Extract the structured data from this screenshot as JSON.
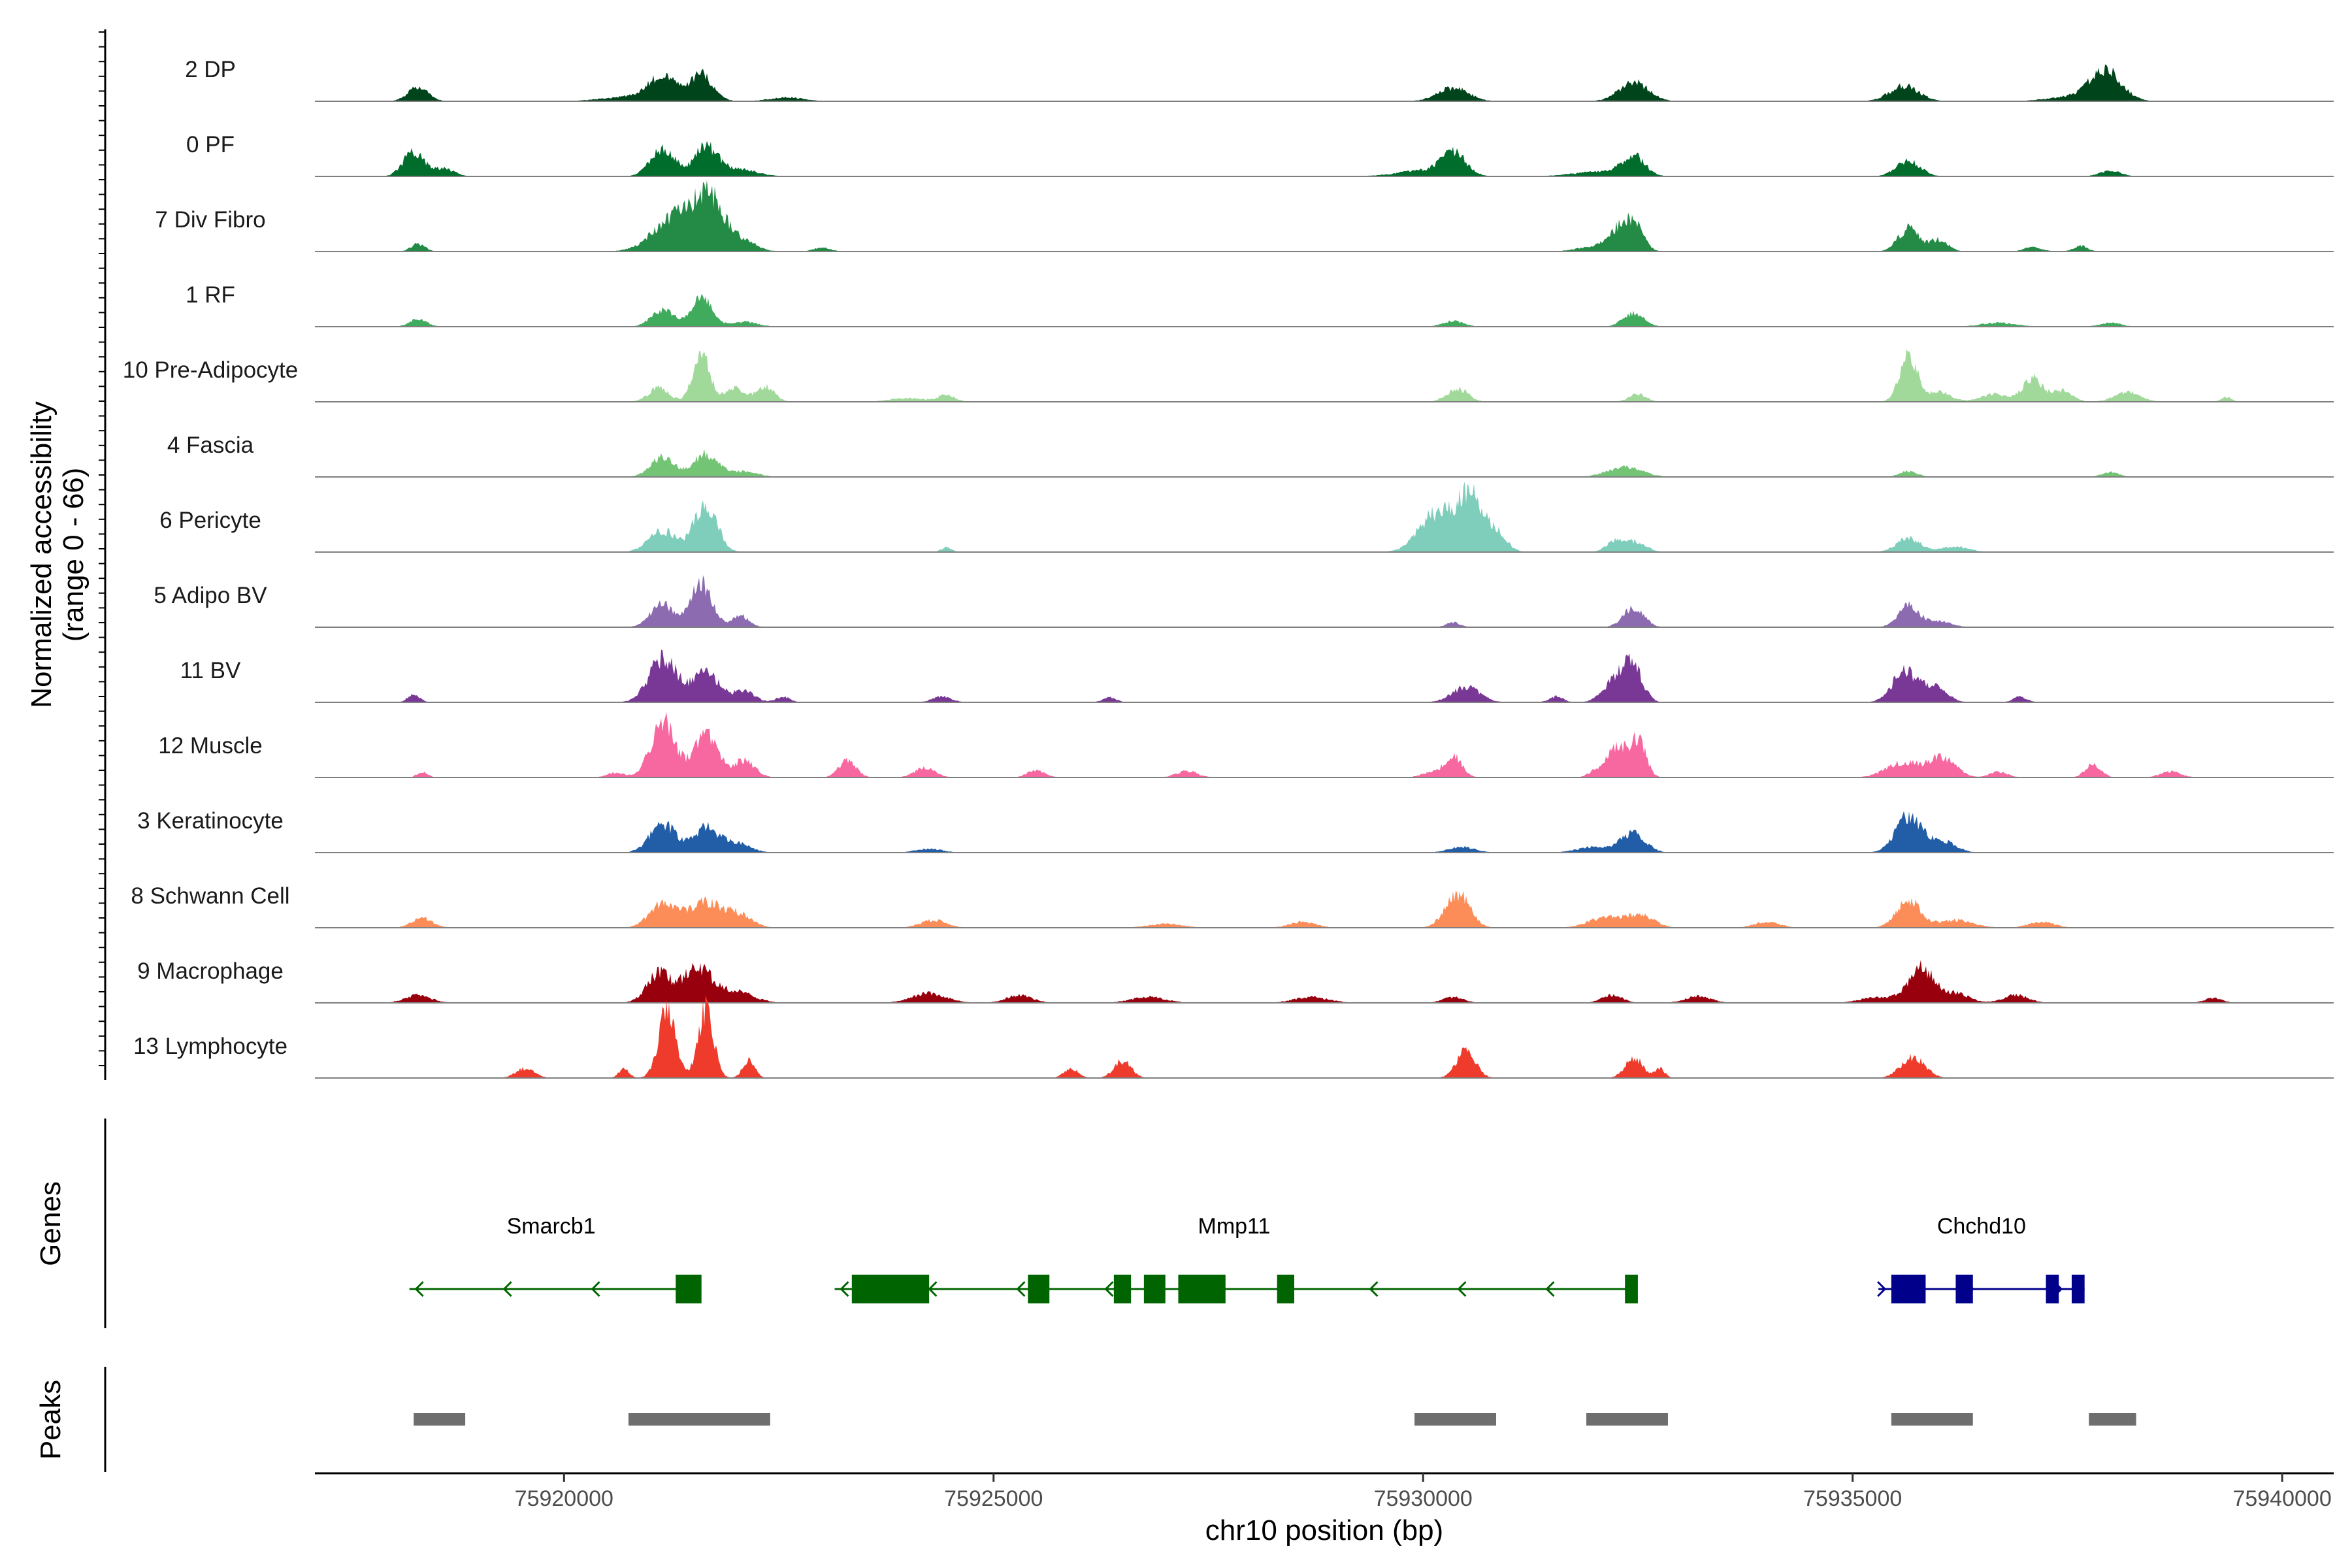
{
  "chart_data": {
    "type": "area",
    "title": "",
    "ylabel": "Normalized accessibility",
    "ylabel_range": "(range 0 - 66)",
    "xlabel": "chr10 position (bp)",
    "chromosome": "chr10",
    "xlim": [
      75917100,
      75940600
    ],
    "ylim": [
      0,
      66
    ],
    "x_ticks": [
      75920000,
      75925000,
      75930000,
      75935000,
      75940000
    ],
    "x_tick_labels": [
      "75920000",
      "75925000",
      "75930000",
      "75935000",
      "75940000"
    ],
    "genes_panel_label": "Genes",
    "peaks_panel_label": "Peaks",
    "tracks": [
      {
        "name": "2 DP",
        "color": "#00441b",
        "peaks": [
          [
            75918300,
            120,
            14
          ],
          [
            75921150,
            150,
            22
          ],
          [
            75921600,
            130,
            26
          ],
          [
            75920950,
            400,
            6
          ],
          [
            75922600,
            200,
            4
          ],
          [
            75930350,
            180,
            14
          ],
          [
            75932450,
            170,
            20
          ],
          [
            75935600,
            170,
            16
          ],
          [
            75937950,
            180,
            30
          ],
          [
            75937600,
            300,
            5
          ]
        ]
      },
      {
        "name": "0 PF",
        "color": "#006d2c",
        "peaks": [
          [
            75918250,
            120,
            26
          ],
          [
            75918600,
            120,
            8
          ],
          [
            75921150,
            140,
            30
          ],
          [
            75921650,
            130,
            30
          ],
          [
            75922000,
            220,
            8
          ],
          [
            75930350,
            140,
            24
          ],
          [
            75930000,
            300,
            6
          ],
          [
            75932450,
            130,
            20
          ],
          [
            75932050,
            300,
            5
          ],
          [
            75935650,
            140,
            16
          ],
          [
            75938000,
            120,
            6
          ]
        ]
      },
      {
        "name": "7 Div Fibro",
        "color": "#238b45",
        "peaks": [
          [
            75918300,
            80,
            8
          ],
          [
            75921300,
            250,
            36
          ],
          [
            75921700,
            180,
            50
          ],
          [
            75922100,
            150,
            10
          ],
          [
            75923000,
            100,
            4
          ],
          [
            75932250,
            120,
            18
          ],
          [
            75932450,
            110,
            28
          ],
          [
            75932000,
            200,
            5
          ],
          [
            75935650,
            120,
            24
          ],
          [
            75936000,
            110,
            12
          ],
          [
            75937100,
            100,
            5
          ],
          [
            75937650,
            80,
            6
          ]
        ]
      },
      {
        "name": "1 RF",
        "color": "#41ab5d",
        "peaks": [
          [
            75918300,
            100,
            8
          ],
          [
            75921150,
            130,
            18
          ],
          [
            75921600,
            120,
            30
          ],
          [
            75922100,
            150,
            5
          ],
          [
            75930350,
            120,
            6
          ],
          [
            75932450,
            120,
            14
          ],
          [
            75936700,
            200,
            4
          ],
          [
            75938000,
            120,
            4
          ]
        ]
      },
      {
        "name": "10 Pre-Adipocyte",
        "color": "#a1d99b",
        "peaks": [
          [
            75921100,
            120,
            14
          ],
          [
            75921600,
            100,
            48
          ],
          [
            75922000,
            120,
            14
          ],
          [
            75922350,
            100,
            16
          ],
          [
            75924450,
            100,
            7
          ],
          [
            75924000,
            200,
            4
          ],
          [
            75930400,
            120,
            14
          ],
          [
            75932500,
            100,
            8
          ],
          [
            75935650,
            100,
            50
          ],
          [
            75936000,
            150,
            10
          ],
          [
            75936650,
            150,
            8
          ],
          [
            75937100,
            120,
            24
          ],
          [
            75937450,
            110,
            12
          ],
          [
            75938200,
            150,
            10
          ],
          [
            75939350,
            60,
            5
          ]
        ]
      },
      {
        "name": "4 Fascia",
        "color": "#74c476",
        "peaks": [
          [
            75921150,
            140,
            20
          ],
          [
            75921650,
            140,
            24
          ],
          [
            75922100,
            150,
            6
          ],
          [
            75932350,
            200,
            10
          ],
          [
            75935650,
            100,
            6
          ],
          [
            75938000,
            100,
            5
          ]
        ]
      },
      {
        "name": "6 Pericyte",
        "color": "#7fcdbb",
        "peaks": [
          [
            75921150,
            160,
            22
          ],
          [
            75921650,
            130,
            52
          ],
          [
            75930150,
            200,
            40
          ],
          [
            75930550,
            150,
            56
          ],
          [
            75930850,
            120,
            18
          ],
          [
            75932250,
            110,
            12
          ],
          [
            75932500,
            110,
            10
          ],
          [
            75935650,
            140,
            14
          ],
          [
            75936200,
            150,
            6
          ],
          [
            75924450,
            60,
            5
          ]
        ]
      },
      {
        "name": "5 Adipo BV",
        "color": "#8c6bb1",
        "peaks": [
          [
            75921150,
            140,
            24
          ],
          [
            75921600,
            120,
            46
          ],
          [
            75922050,
            100,
            12
          ],
          [
            75932450,
            120,
            20
          ],
          [
            75935650,
            120,
            22
          ],
          [
            75936000,
            150,
            6
          ],
          [
            75930350,
            80,
            5
          ]
        ]
      },
      {
        "name": "11 BV",
        "color": "#7a3896",
        "peaks": [
          [
            75918250,
            70,
            8
          ],
          [
            75921150,
            160,
            46
          ],
          [
            75921650,
            160,
            30
          ],
          [
            75922100,
            120,
            12
          ],
          [
            75922550,
            80,
            6
          ],
          [
            75924400,
            110,
            6
          ],
          [
            75926350,
            80,
            5
          ],
          [
            75930500,
            160,
            16
          ],
          [
            75931550,
            80,
            6
          ],
          [
            75932250,
            140,
            24
          ],
          [
            75932450,
            110,
            32
          ],
          [
            75935600,
            140,
            32
          ],
          [
            75935950,
            140,
            16
          ],
          [
            75936950,
            80,
            6
          ]
        ]
      },
      {
        "name": "12 Muscle",
        "color": "#f768a1",
        "peaks": [
          [
            75918350,
            60,
            6
          ],
          [
            75920600,
            100,
            5
          ],
          [
            75921150,
            140,
            58
          ],
          [
            75921650,
            140,
            46
          ],
          [
            75922100,
            120,
            18
          ],
          [
            75923300,
            100,
            18
          ],
          [
            75924200,
            120,
            10
          ],
          [
            75925500,
            100,
            8
          ],
          [
            75927250,
            120,
            7
          ],
          [
            75930350,
            100,
            22
          ],
          [
            75930100,
            120,
            5
          ],
          [
            75932250,
            110,
            32
          ],
          [
            75932500,
            90,
            40
          ],
          [
            75932000,
            80,
            6
          ],
          [
            75935600,
            200,
            16
          ],
          [
            75936050,
            150,
            20
          ],
          [
            75936700,
            100,
            6
          ],
          [
            75937800,
            90,
            14
          ],
          [
            75938700,
            120,
            6
          ]
        ]
      },
      {
        "name": "3 Keratinocyte",
        "color": "#225ea8",
        "peaks": [
          [
            75921150,
            150,
            30
          ],
          [
            75921650,
            140,
            26
          ],
          [
            75922000,
            160,
            10
          ],
          [
            75924250,
            150,
            4
          ],
          [
            75930450,
            150,
            6
          ],
          [
            75932450,
            140,
            20
          ],
          [
            75932000,
            200,
            6
          ],
          [
            75935650,
            150,
            38
          ],
          [
            75936050,
            150,
            12
          ]
        ]
      },
      {
        "name": "8 Schwann Cell",
        "color": "#fc8d59",
        "peaks": [
          [
            75918350,
            120,
            10
          ],
          [
            75921150,
            150,
            26
          ],
          [
            75921650,
            200,
            26
          ],
          [
            75922050,
            150,
            12
          ],
          [
            75924300,
            150,
            8
          ],
          [
            75927000,
            200,
            4
          ],
          [
            75928600,
            150,
            6
          ],
          [
            75930400,
            140,
            36
          ],
          [
            75932150,
            200,
            12
          ],
          [
            75932550,
            150,
            12
          ],
          [
            75934000,
            150,
            6
          ],
          [
            75935650,
            140,
            28
          ],
          [
            75936200,
            200,
            8
          ],
          [
            75937200,
            150,
            6
          ]
        ]
      },
      {
        "name": "9 Macrophage",
        "color": "#99000d",
        "peaks": [
          [
            75918300,
            150,
            8
          ],
          [
            75921100,
            140,
            30
          ],
          [
            75921550,
            170,
            36
          ],
          [
            75922000,
            200,
            12
          ],
          [
            75924250,
            200,
            10
          ],
          [
            75925300,
            150,
            8
          ],
          [
            75926800,
            200,
            6
          ],
          [
            75928700,
            200,
            6
          ],
          [
            75930350,
            120,
            6
          ],
          [
            75932200,
            120,
            8
          ],
          [
            75933200,
            150,
            7
          ],
          [
            75935300,
            200,
            6
          ],
          [
            75935800,
            150,
            36
          ],
          [
            75936200,
            150,
            10
          ],
          [
            75936900,
            150,
            8
          ],
          [
            75939200,
            100,
            5
          ]
        ]
      },
      {
        "name": "13 Lymphocyte",
        "color": "#ef3b2c",
        "peaks": [
          [
            75919550,
            110,
            10
          ],
          [
            75920700,
            60,
            10
          ],
          [
            75921200,
            100,
            70
          ],
          [
            75921650,
            90,
            72
          ],
          [
            75922150,
            70,
            18
          ],
          [
            75925900,
            80,
            10
          ],
          [
            75926500,
            100,
            18
          ],
          [
            75930500,
            110,
            28
          ],
          [
            75932450,
            100,
            22
          ],
          [
            75932750,
            60,
            10
          ],
          [
            75935700,
            140,
            22
          ]
        ]
      }
    ],
    "genes": [
      {
        "name": "Smarcb1",
        "strand": "-",
        "color": "#006400",
        "start": 75918200,
        "end": 75921500,
        "exons": [
          [
            75921300,
            75921600
          ]
        ]
      },
      {
        "name": "Mmp11",
        "strand": "-",
        "color": "#006400",
        "start": 75923150,
        "end": 75932450,
        "exons": [
          [
            75923350,
            75924250
          ],
          [
            75925400,
            75925650
          ],
          [
            75926400,
            75926600
          ],
          [
            75926750,
            75927000
          ],
          [
            75927150,
            75927700
          ],
          [
            75928300,
            75928500
          ],
          [
            75932350,
            75932500
          ]
        ]
      },
      {
        "name": "Chchd10",
        "strand": "+",
        "color": "#00008b",
        "start": 75935300,
        "end": 75937700,
        "exons": [
          [
            75935450,
            75935850
          ],
          [
            75936200,
            75936400
          ],
          [
            75937250,
            75937400
          ],
          [
            75937550,
            75937700
          ]
        ]
      }
    ],
    "peaks": [
      [
        75918250,
        75918850
      ],
      [
        75920750,
        75922400
      ],
      [
        75929900,
        75930850
      ],
      [
        75931900,
        75932850
      ],
      [
        75935450,
        75936400
      ],
      [
        75937750,
        75938300
      ]
    ]
  }
}
